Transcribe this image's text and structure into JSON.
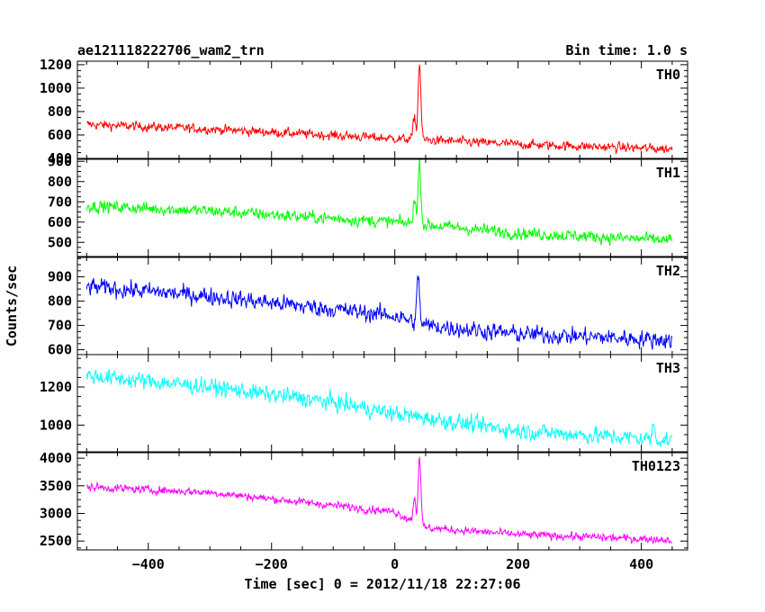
{
  "chart_data": {
    "type": "line",
    "title": "ae121118222706_wam2_trn",
    "subtitle": "Bin time: 1.0 s",
    "xlabel": "Time [sec] 0 = 2012/11/18 22:27:06",
    "ylabel": "Counts/sec",
    "xlim": [
      -515,
      475
    ],
    "x_ticks": [
      -400,
      -200,
      0,
      200,
      400
    ],
    "x_tick_labels": [
      "−400",
      "−200",
      "0",
      "200",
      "400"
    ],
    "x_range": [
      -500,
      450
    ],
    "bin_time_s": 1.0,
    "grid": false,
    "panels": [
      {
        "name": "TH0",
        "color": "#ff0000",
        "ylim": [
          400,
          1230
        ],
        "y_ticks": [
          400,
          600,
          800,
          1000,
          1200
        ],
        "trend": [
          [
            -500,
            690
          ],
          [
            -300,
            650
          ],
          [
            0,
            570
          ],
          [
            200,
            520
          ],
          [
            450,
            480
          ]
        ],
        "noise": 50,
        "peaks": [
          {
            "x": 40,
            "y": 1220
          },
          {
            "x": 32,
            "y": 760
          }
        ]
      },
      {
        "name": "TH1",
        "color": "#00ff00",
        "ylim": [
          430,
          910
        ],
        "y_ticks": [
          500,
          600,
          700,
          800,
          900
        ],
        "trend": [
          [
            -500,
            680
          ],
          [
            -300,
            655
          ],
          [
            0,
            600
          ],
          [
            200,
            545
          ],
          [
            450,
            510
          ]
        ],
        "noise": 38,
        "peaks": [
          {
            "x": 40,
            "y": 900
          },
          {
            "x": 32,
            "y": 720
          }
        ]
      },
      {
        "name": "TH2",
        "color": "#0000ff",
        "ylim": [
          580,
          980
        ],
        "y_ticks": [
          600,
          700,
          800,
          900
        ],
        "trend": [
          [
            -500,
            860
          ],
          [
            -300,
            820
          ],
          [
            0,
            740
          ],
          [
            50,
            700
          ],
          [
            200,
            665
          ],
          [
            450,
            640
          ]
        ],
        "noise": 45,
        "peaks": [
          {
            "x": 38,
            "y": 900
          }
        ]
      },
      {
        "name": "TH3",
        "color": "#00ffff",
        "ylim": [
          860,
          1370
        ],
        "y_ticks": [
          1000,
          1200
        ],
        "trend": [
          [
            -500,
            1260
          ],
          [
            -300,
            1200
          ],
          [
            -100,
            1120
          ],
          [
            0,
            1060
          ],
          [
            200,
            970
          ],
          [
            450,
            920
          ]
        ],
        "noise": 55,
        "peaks": [
          {
            "x": 420,
            "y": 1000
          }
        ]
      },
      {
        "name": "TH0123",
        "color": "#ff00ff",
        "ylim": [
          2340,
          4100
        ],
        "y_ticks": [
          2500,
          3000,
          3500,
          4000
        ],
        "trend": [
          [
            -500,
            3480
          ],
          [
            -300,
            3380
          ],
          [
            0,
            3030
          ],
          [
            50,
            2740
          ],
          [
            200,
            2620
          ],
          [
            450,
            2520
          ]
        ],
        "noise": 90,
        "peaks": [
          {
            "x": 40,
            "y": 4050
          },
          {
            "x": 32,
            "y": 3300
          }
        ]
      }
    ]
  }
}
